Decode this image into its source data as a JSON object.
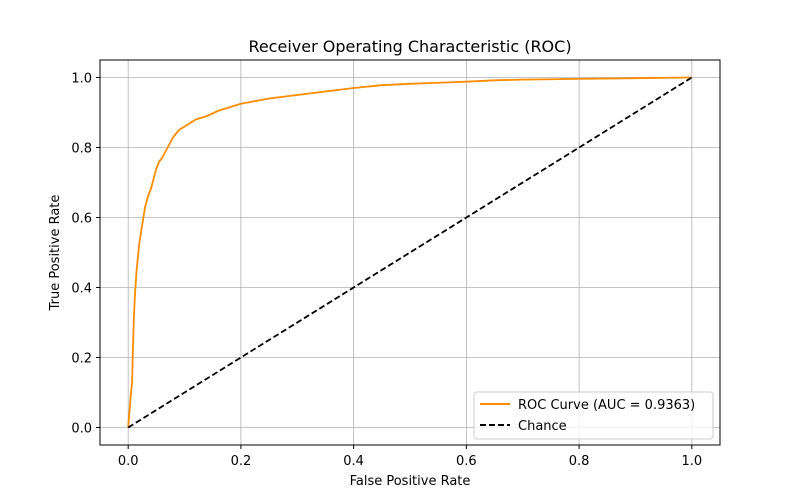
{
  "chart_data": {
    "type": "line",
    "title": "Receiver Operating Characteristic (ROC)",
    "xlabel": "False Positive Rate",
    "ylabel": "True Positive Rate",
    "xlim": [
      -0.05,
      1.05
    ],
    "ylim": [
      -0.05,
      1.05
    ],
    "xticks": [
      0.0,
      0.2,
      0.4,
      0.6,
      0.8,
      1.0
    ],
    "xtick_labels": [
      "0.0",
      "0.2",
      "0.4",
      "0.6",
      "0.8",
      "1.0"
    ],
    "yticks": [
      0.0,
      0.2,
      0.4,
      0.6,
      0.8,
      1.0
    ],
    "ytick_labels": [
      "0.0",
      "0.2",
      "0.4",
      "0.6",
      "0.8",
      "1.0"
    ],
    "grid": true,
    "legend_position": "lower-right",
    "series": [
      {
        "name": "ROC Curve (AUC = 0.9363)",
        "color": "#ff8c00",
        "style": "solid",
        "x": [
          0.0,
          0.003,
          0.005,
          0.007,
          0.008,
          0.01,
          0.012,
          0.015,
          0.018,
          0.02,
          0.025,
          0.03,
          0.035,
          0.04,
          0.045,
          0.05,
          0.055,
          0.06,
          0.07,
          0.08,
          0.09,
          0.1,
          0.12,
          0.14,
          0.16,
          0.18,
          0.2,
          0.25,
          0.3,
          0.35,
          0.4,
          0.45,
          0.5,
          0.55,
          0.6,
          0.65,
          0.7,
          0.8,
          0.9,
          1.0
        ],
        "y": [
          0.0,
          0.06,
          0.1,
          0.13,
          0.2,
          0.31,
          0.38,
          0.45,
          0.5,
          0.53,
          0.58,
          0.63,
          0.66,
          0.68,
          0.71,
          0.74,
          0.76,
          0.77,
          0.8,
          0.83,
          0.85,
          0.86,
          0.88,
          0.89,
          0.905,
          0.915,
          0.925,
          0.94,
          0.95,
          0.96,
          0.97,
          0.978,
          0.982,
          0.985,
          0.988,
          0.992,
          0.994,
          0.996,
          0.998,
          1.0
        ]
      },
      {
        "name": "Chance",
        "color": "#000000",
        "style": "dashed",
        "x": [
          0.0,
          1.0
        ],
        "y": [
          0.0,
          1.0
        ]
      }
    ]
  }
}
